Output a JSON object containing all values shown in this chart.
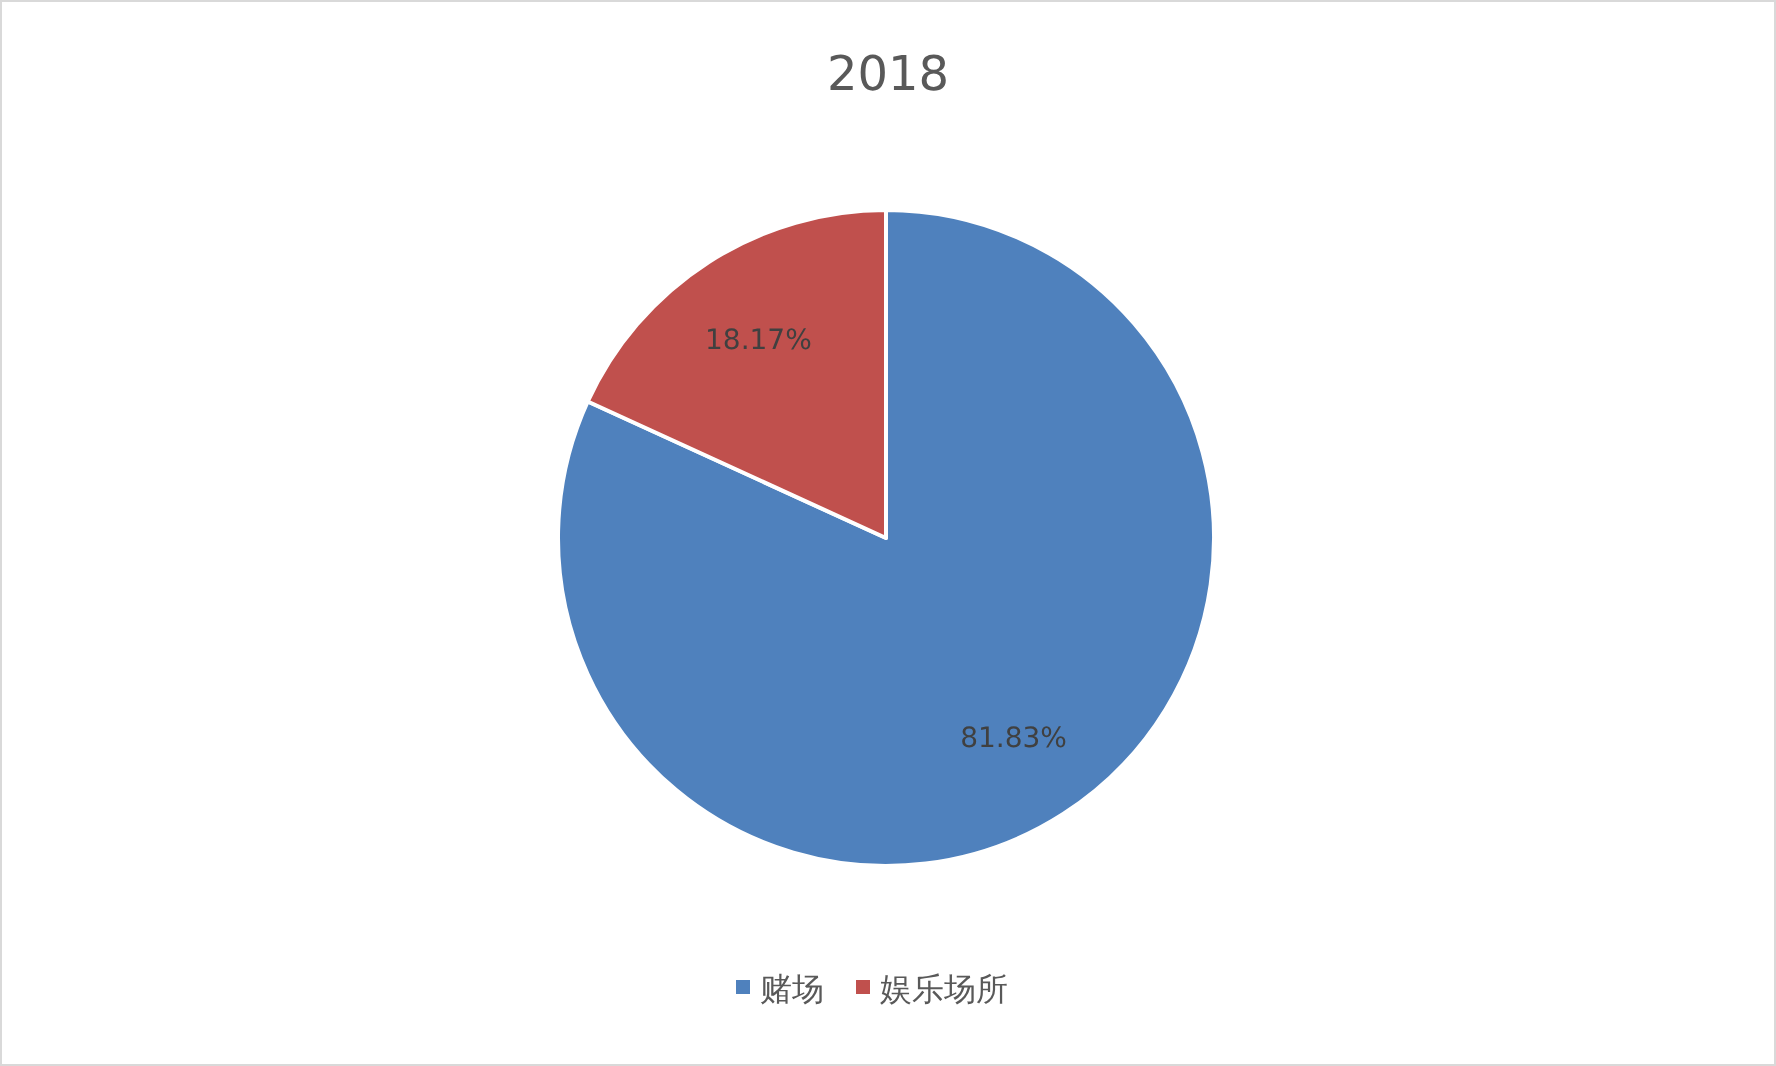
{
  "chart_data": {
    "type": "pie",
    "title": "2018",
    "categories": [
      "赌场",
      "娱乐场所"
    ],
    "values": [
      81.83,
      18.17
    ],
    "colors": [
      "#4f81bd",
      "#c0504d"
    ],
    "value_labels": [
      "81.83%",
      "18.17%"
    ],
    "legend": "bottom"
  }
}
